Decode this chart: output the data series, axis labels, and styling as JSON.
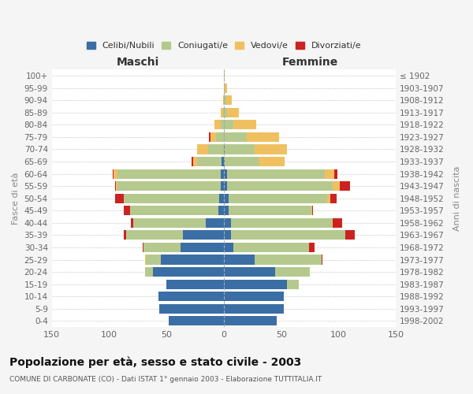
{
  "age_groups": [
    "0-4",
    "5-9",
    "10-14",
    "15-19",
    "20-24",
    "25-29",
    "30-34",
    "35-39",
    "40-44",
    "45-49",
    "50-54",
    "55-59",
    "60-64",
    "65-69",
    "70-74",
    "75-79",
    "80-84",
    "85-89",
    "90-94",
    "95-99",
    "100+"
  ],
  "birth_years": [
    "1998-2002",
    "1993-1997",
    "1988-1992",
    "1983-1987",
    "1978-1982",
    "1973-1977",
    "1968-1972",
    "1963-1967",
    "1958-1962",
    "1953-1957",
    "1948-1952",
    "1943-1947",
    "1938-1942",
    "1933-1937",
    "1928-1932",
    "1923-1927",
    "1918-1922",
    "1913-1917",
    "1908-1912",
    "1903-1907",
    "≤ 1902"
  ],
  "colors": {
    "celibi": "#3a6ea5",
    "coniugati": "#b5c98e",
    "vedovi": "#f0c060",
    "divorziati": "#cc2222"
  },
  "maschi": {
    "celibi": [
      48,
      56,
      57,
      50,
      62,
      55,
      38,
      36,
      16,
      5,
      4,
      3,
      3,
      2,
      0,
      0,
      0,
      0,
      0,
      0,
      0
    ],
    "coniugati": [
      0,
      0,
      0,
      0,
      7,
      13,
      32,
      49,
      63,
      77,
      83,
      90,
      90,
      21,
      14,
      7,
      3,
      1,
      0,
      0,
      0
    ],
    "vedovi": [
      0,
      0,
      0,
      0,
      0,
      1,
      0,
      0,
      0,
      0,
      0,
      1,
      3,
      4,
      9,
      5,
      5,
      2,
      1,
      0,
      0
    ],
    "divorziati": [
      0,
      0,
      0,
      0,
      0,
      0,
      1,
      2,
      2,
      5,
      8,
      1,
      1,
      1,
      0,
      1,
      0,
      0,
      0,
      0,
      0
    ]
  },
  "femmine": {
    "celibi": [
      46,
      52,
      52,
      55,
      45,
      27,
      8,
      6,
      6,
      4,
      4,
      3,
      3,
      1,
      1,
      0,
      0,
      0,
      0,
      0,
      0
    ],
    "coniugati": [
      0,
      0,
      0,
      10,
      30,
      58,
      66,
      100,
      88,
      72,
      86,
      92,
      85,
      30,
      26,
      20,
      8,
      3,
      2,
      1,
      0
    ],
    "vedovi": [
      0,
      0,
      0,
      0,
      0,
      0,
      0,
      0,
      1,
      1,
      3,
      6,
      8,
      22,
      28,
      28,
      20,
      10,
      5,
      2,
      1
    ],
    "divorziati": [
      0,
      0,
      0,
      0,
      0,
      1,
      5,
      8,
      8,
      1,
      5,
      9,
      3,
      0,
      0,
      0,
      0,
      0,
      0,
      0,
      0
    ]
  },
  "xlim": 150,
  "title": "Popolazione per età, sesso e stato civile - 2003",
  "subtitle": "COMUNE DI CARBONATE (CO) - Dati ISTAT 1° gennaio 2003 - Elaborazione TUTTITALIA.IT",
  "ylabel_left": "Fasce di età",
  "ylabel_right": "Anni di nascita",
  "xlabel_maschi": "Maschi",
  "xlabel_femmine": "Femmine",
  "bg_color": "#f5f5f5",
  "plot_bg_color": "#ffffff",
  "legend_labels": [
    "Celibi/Nubili",
    "Coniugati/e",
    "Vedovi/e",
    "Divorziati/e"
  ]
}
